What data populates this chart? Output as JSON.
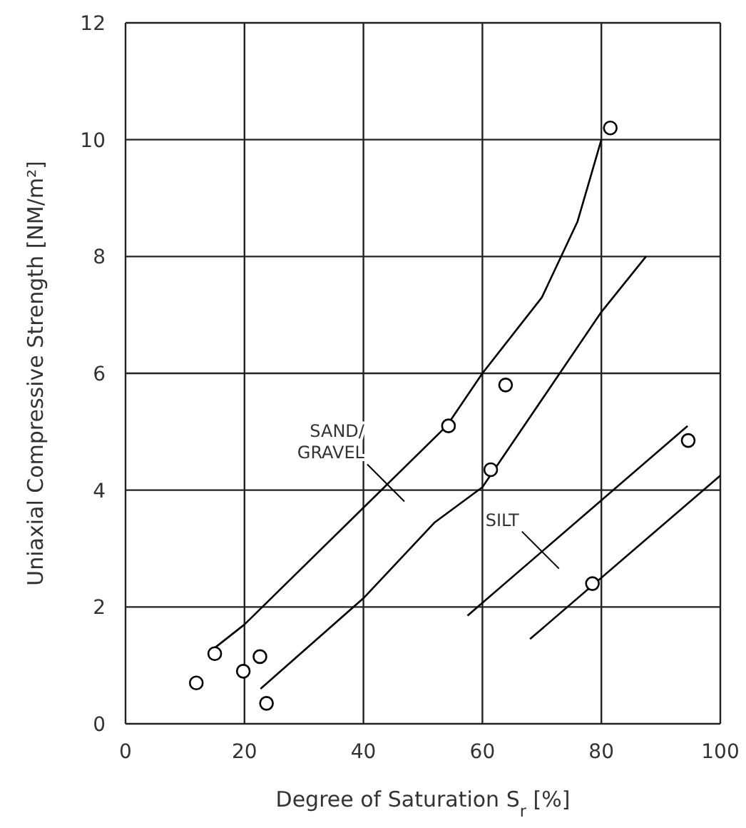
{
  "chart_data": {
    "type": "scatter",
    "xlabel": "Degree of Saturation S$_{r}$ [%]",
    "ylabel": "Uniaxial Compressive Strength [NM/m²]",
    "xlim": [
      0,
      100
    ],
    "xticks": [
      0,
      20,
      40,
      60,
      80,
      100
    ],
    "ylim": [
      0,
      12
    ],
    "yticks": [
      0,
      2,
      4,
      6,
      8,
      10,
      12
    ],
    "grid": true,
    "series": [
      {
        "marker": "circle",
        "color": "#000000",
        "x": [
          11.9,
          15,
          19.8,
          22.6,
          23.7,
          54.3,
          61.4,
          63.9,
          78.5,
          81.5,
          94.6
        ],
        "values": [
          0.7,
          1.2,
          0.9,
          1.15,
          0.35,
          5.1,
          4.35,
          5.8,
          2.4,
          10.2,
          4.85
        ]
      },
      {
        "type": "line",
        "color": "#000000",
        "x": [
          15,
          20,
          40,
          54,
          60,
          70,
          76,
          80
        ],
        "values": [
          1.3,
          1.7,
          3.7,
          5.1,
          6,
          7.3,
          8.6,
          10
        ]
      },
      {
        "type": "line",
        "color": "#000000",
        "x": [
          22.7,
          40,
          52,
          60,
          80,
          87.5
        ],
        "values": [
          0.6,
          2.15,
          3.45,
          4.05,
          7.05,
          8
        ]
      },
      {
        "type": "line",
        "color": "#000000",
        "x": [
          57.5,
          94.5
        ],
        "values": [
          1.85,
          5.1
        ]
      },
      {
        "type": "line",
        "color": "#000000",
        "x": [
          68,
          100
        ],
        "values": [
          1.45,
          4.25
        ]
      }
    ],
    "annotations": [
      {
        "text": "SAND/\nGRAVEL",
        "x": 44,
        "y": 4.1
      },
      {
        "text": "SILT",
        "x": 70,
        "y": 2.95
      }
    ]
  }
}
